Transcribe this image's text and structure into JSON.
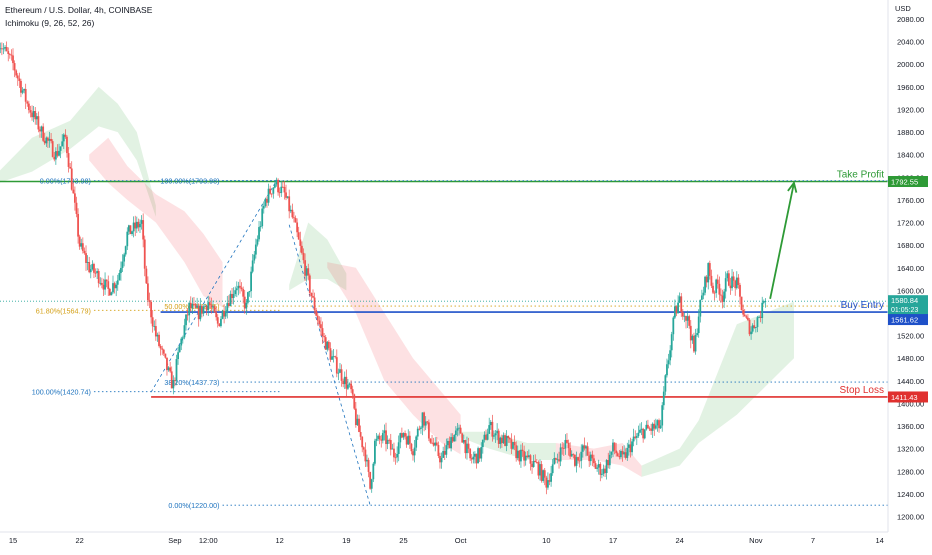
{
  "header": {
    "symbol_line": "Ethereum / U.S. Dollar, 4h, COINBASE",
    "indicator_line": "Ichimoku (9, 26, 52, 26)"
  },
  "axis": {
    "currency": "USD",
    "y_ticks": [
      2080,
      2040,
      2000,
      1960,
      1920,
      1880,
      1840,
      1800,
      1760,
      1720,
      1680,
      1640,
      1600,
      1560,
      1520,
      1480,
      1440,
      1400,
      1360,
      1320,
      1280,
      1240,
      1200
    ],
    "y_tick_labels": [
      "2080.00",
      "2040.00",
      "2000.00",
      "1960.00",
      "1920.00",
      "1880.00",
      "1840.00",
      "1800.00",
      "1760.00",
      "1720.00",
      "1680.00",
      "1640.00",
      "1600.00",
      "1560.00",
      "1520.00",
      "1480.00",
      "1440.00",
      "1400.00",
      "1360.00",
      "1320.00",
      "1280.00",
      "1240.00",
      "1200.00"
    ],
    "x_ticks": [
      {
        "label": "15",
        "t": 0
      },
      {
        "label": "22",
        "t": 7
      },
      {
        "label": "Sep",
        "t": 17
      },
      {
        "label": "12:00",
        "t": 20.5
      },
      {
        "label": "12",
        "t": 28
      },
      {
        "label": "19",
        "t": 35
      },
      {
        "label": "25",
        "t": 41
      },
      {
        "label": "Oct",
        "t": 47
      },
      {
        "label": "10",
        "t": 56
      },
      {
        "label": "17",
        "t": 63
      },
      {
        "label": "24",
        "t": 70
      },
      {
        "label": "Nov",
        "t": 78
      },
      {
        "label": "7",
        "t": 84
      },
      {
        "label": "14",
        "t": 91
      }
    ]
  },
  "chart_data": {
    "type": "candlestick",
    "x_range": [
      -1.5,
      92.5
    ],
    "ylim": [
      1190,
      2095
    ],
    "levels": {
      "take_profit": {
        "label": "Take Profit",
        "value": 1792.55,
        "value_label": "1792.55",
        "color": "#2e9a36",
        "t_start": -1.5
      },
      "buy_entry": {
        "label": "Buy Entry",
        "value": 1561.62,
        "value_label": "1561.62",
        "color": "#1e50c8",
        "t_start": 15.5
      },
      "stop_loss": {
        "label": "Stop Loss",
        "value": 1411.43,
        "value_label": "1411.43",
        "color": "#e0302e",
        "t_start": 14.5
      }
    },
    "current_price": {
      "value": 1580.84,
      "value_label": "1580.84",
      "countdown": "01:05:23",
      "color": "#26a69a"
    },
    "fib_sets": [
      {
        "color": "#1e73be",
        "t_start": 8.5,
        "t_end": 28,
        "levels": [
          {
            "label": "0.00%(1793.98)",
            "value": 1793.98
          },
          {
            "label": "61.80%(1564.79)",
            "value": 1564.79,
            "color": "#d4a017"
          },
          {
            "label": "100.00%(1420.74)",
            "value": 1420.74
          }
        ]
      },
      {
        "color": "#1e73be",
        "t_start": 22,
        "t_end": 92,
        "levels": [
          {
            "label": "100.00%(1793.98)",
            "value": 1793.98
          },
          {
            "label": "50.00%(1572.25)",
            "value": 1572.25,
            "color": "#d4a017"
          },
          {
            "label": "38.20%(1437.73)",
            "value": 1437.73
          },
          {
            "label": "0.00%(1220.00)",
            "value": 1220.0
          }
        ]
      }
    ],
    "swing_lines": [
      {
        "points": [
          [
            14.5,
            1420
          ],
          [
            27.7,
            1795
          ]
        ]
      },
      {
        "points": [
          [
            29,
            1716
          ],
          [
            37.5,
            1220
          ]
        ]
      }
    ],
    "projection_arrow": {
      "from": [
        79.5,
        1585
      ],
      "to": [
        82,
        1790
      ],
      "color": "#2e9a36"
    },
    "cloud_segments": [
      {
        "color": "green",
        "points": [
          [
            -1.5,
            1790,
            1810
          ],
          [
            2,
            1870,
            1810
          ],
          [
            6,
            1900,
            1850
          ],
          [
            9,
            1960,
            1890
          ],
          [
            11,
            1930,
            1880
          ],
          [
            13,
            1880,
            1830
          ],
          [
            15,
            1750,
            1730
          ]
        ]
      },
      {
        "color": "red",
        "points": [
          [
            8,
            1830,
            1840
          ],
          [
            10,
            1790,
            1870
          ],
          [
            12,
            1760,
            1820
          ],
          [
            15,
            1720,
            1770
          ],
          [
            18,
            1650,
            1740
          ],
          [
            20,
            1590,
            1700
          ],
          [
            22,
            1570,
            1650
          ]
        ]
      },
      {
        "color": "green",
        "points": [
          [
            29,
            1600,
            1610
          ],
          [
            31,
            1720,
            1620
          ],
          [
            33,
            1690,
            1620
          ],
          [
            35,
            1630,
            1600
          ]
        ]
      },
      {
        "color": "red",
        "points": [
          [
            33,
            1640,
            1650
          ],
          [
            36,
            1560,
            1640
          ],
          [
            39,
            1440,
            1560
          ],
          [
            42,
            1380,
            1480
          ],
          [
            45,
            1330,
            1420
          ],
          [
            47,
            1310,
            1380
          ]
        ]
      },
      {
        "color": "green",
        "points": [
          [
            47,
            1340,
            1350
          ],
          [
            50,
            1350,
            1320
          ],
          [
            54,
            1330,
            1300
          ],
          [
            57,
            1330,
            1300
          ]
        ]
      },
      {
        "color": "red",
        "points": [
          [
            57,
            1330,
            1300
          ],
          [
            61,
            1320,
            1300
          ],
          [
            64,
            1330,
            1290
          ],
          [
            66,
            1290,
            1270
          ]
        ]
      },
      {
        "color": "green",
        "points": [
          [
            66,
            1290,
            1270
          ],
          [
            70,
            1320,
            1290
          ],
          [
            72,
            1370,
            1330
          ],
          [
            76,
            1540,
            1380
          ],
          [
            79,
            1560,
            1430
          ],
          [
            82,
            1580,
            1480
          ]
        ]
      }
    ],
    "price_path": [
      [
        -1.5,
        2040
      ],
      [
        0,
        2000
      ],
      [
        1.5,
        1930
      ],
      [
        3,
        1880
      ],
      [
        4.5,
        1840
      ],
      [
        5.5,
        1870
      ],
      [
        6,
        1810
      ],
      [
        7,
        1680
      ],
      [
        8,
        1640
      ],
      [
        9,
        1625
      ],
      [
        10,
        1600
      ],
      [
        11,
        1620
      ],
      [
        12,
        1700
      ],
      [
        13.5,
        1720
      ],
      [
        14,
        1600
      ],
      [
        15,
        1520
      ],
      [
        16,
        1470
      ],
      [
        16.8,
        1430
      ],
      [
        17.5,
        1500
      ],
      [
        18.5,
        1570
      ],
      [
        19.5,
        1560
      ],
      [
        20.5,
        1580
      ],
      [
        21.5,
        1540
      ],
      [
        22.5,
        1580
      ],
      [
        23.5,
        1610
      ],
      [
        24.5,
        1570
      ],
      [
        25.5,
        1680
      ],
      [
        26.5,
        1760
      ],
      [
        27.5,
        1790
      ],
      [
        28.5,
        1770
      ],
      [
        29.5,
        1720
      ],
      [
        30.5,
        1650
      ],
      [
        31.5,
        1580
      ],
      [
        32.5,
        1520
      ],
      [
        33.5,
        1480
      ],
      [
        34.5,
        1450
      ],
      [
        35.5,
        1420
      ],
      [
        36,
        1370
      ],
      [
        37,
        1310
      ],
      [
        37.5,
        1250
      ],
      [
        38,
        1330
      ],
      [
        39,
        1340
      ],
      [
        40,
        1310
      ],
      [
        41,
        1350
      ],
      [
        42,
        1320
      ],
      [
        43,
        1380
      ],
      [
        44,
        1330
      ],
      [
        45,
        1300
      ],
      [
        46,
        1340
      ],
      [
        47,
        1350
      ],
      [
        48,
        1300
      ],
      [
        49,
        1310
      ],
      [
        50,
        1360
      ],
      [
        51,
        1340
      ],
      [
        52,
        1330
      ],
      [
        53,
        1310
      ],
      [
        54,
        1300
      ],
      [
        55,
        1290
      ],
      [
        56,
        1260
      ],
      [
        57,
        1300
      ],
      [
        58,
        1330
      ],
      [
        59,
        1300
      ],
      [
        60,
        1320
      ],
      [
        61,
        1290
      ],
      [
        62,
        1280
      ],
      [
        63,
        1320
      ],
      [
        64,
        1300
      ],
      [
        65,
        1330
      ],
      [
        66,
        1350
      ],
      [
        67,
        1355
      ],
      [
        68,
        1360
      ],
      [
        68.5,
        1440
      ],
      [
        69,
        1500
      ],
      [
        69.5,
        1560
      ],
      [
        70,
        1580
      ],
      [
        70.5,
        1560
      ],
      [
        71,
        1540
      ],
      [
        71.5,
        1490
      ],
      [
        72,
        1560
      ],
      [
        72.5,
        1600
      ],
      [
        73,
        1640
      ],
      [
        73.5,
        1600
      ],
      [
        74,
        1610
      ],
      [
        74.5,
        1590
      ],
      [
        75,
        1620
      ],
      [
        76,
        1610
      ],
      [
        76.8,
        1550
      ],
      [
        77.5,
        1530
      ],
      [
        78,
        1545
      ],
      [
        78.5,
        1560
      ],
      [
        79,
        1580.84
      ]
    ]
  }
}
